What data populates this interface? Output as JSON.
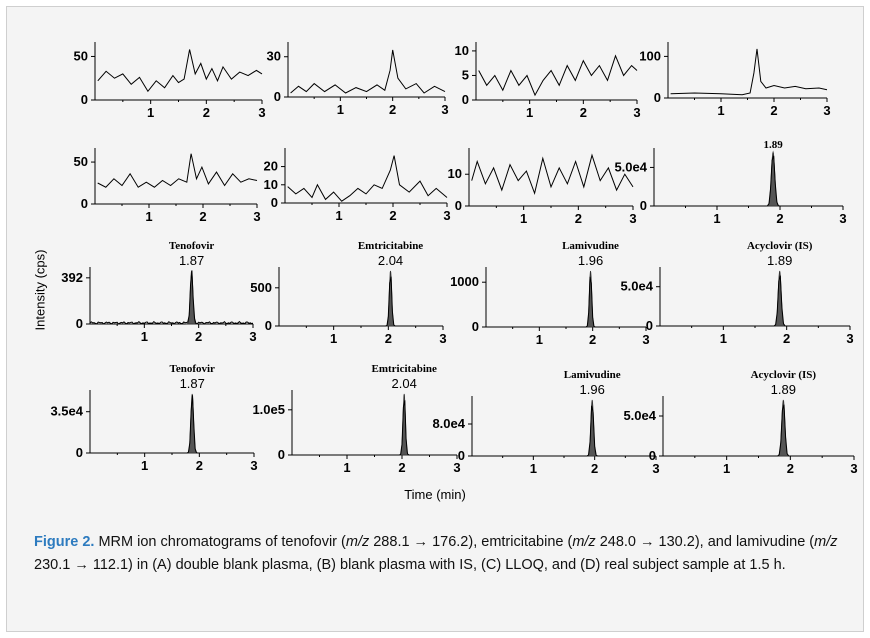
{
  "figure": {
    "y_axis_label": "Intensity (cps)",
    "x_axis_label": "Time (min)",
    "caption": {
      "label": "Figure 2.",
      "segments": [
        {
          "t": " MRM ion chromatograms of tenofovir (",
          "i": false
        },
        {
          "t": "m/z",
          "i": true
        },
        {
          "t": " 288.1 → 176.2), emtricitabine (",
          "i": false
        },
        {
          "t": "m/z",
          "i": true
        },
        {
          "t": " 248.0 → 130.2), and lamivudine (",
          "i": false
        },
        {
          "t": "m/z",
          "i": true
        },
        {
          "t": " 230.1 → 112.1) in (A) double blank plasma, (B) blank plasma with IS, (C) LLOQ, and (D) real subject sample at 1.5 h.",
          "i": false
        }
      ]
    }
  },
  "chart_data": [
    {
      "type": "line",
      "panel": "A-1",
      "x_ticks": [
        "1",
        "2",
        "3"
      ],
      "xlim": [
        0,
        3
      ],
      "y_ticks": [
        "0",
        "50"
      ],
      "ylim": [
        0,
        62
      ],
      "series": [
        {
          "points": [
            [
              0.05,
              22
            ],
            [
              0.2,
              33
            ],
            [
              0.35,
              25
            ],
            [
              0.5,
              30
            ],
            [
              0.65,
              18
            ],
            [
              0.8,
              26
            ],
            [
              0.95,
              10
            ],
            [
              1.1,
              22
            ],
            [
              1.25,
              14
            ],
            [
              1.4,
              28
            ],
            [
              1.5,
              20
            ],
            [
              1.6,
              24
            ],
            [
              1.7,
              58
            ],
            [
              1.8,
              30
            ],
            [
              1.9,
              42
            ],
            [
              2.0,
              24
            ],
            [
              2.1,
              36
            ],
            [
              2.2,
              22
            ],
            [
              2.3,
              38
            ],
            [
              2.45,
              24
            ],
            [
              2.6,
              32
            ],
            [
              2.75,
              28
            ],
            [
              2.9,
              34
            ],
            [
              3.0,
              30
            ]
          ]
        }
      ]
    },
    {
      "type": "line",
      "panel": "A-2",
      "x_ticks": [
        "1",
        "2",
        "3"
      ],
      "xlim": [
        0,
        3
      ],
      "y_ticks": [
        "0",
        "30"
      ],
      "ylim": [
        0,
        38
      ],
      "series": [
        {
          "points": [
            [
              0.05,
              3
            ],
            [
              0.2,
              8
            ],
            [
              0.35,
              4
            ],
            [
              0.5,
              10
            ],
            [
              0.7,
              4
            ],
            [
              0.9,
              9
            ],
            [
              1.1,
              3
            ],
            [
              1.3,
              7
            ],
            [
              1.5,
              4
            ],
            [
              1.7,
              9
            ],
            [
              1.85,
              5
            ],
            [
              1.95,
              20
            ],
            [
              2.0,
              35
            ],
            [
              2.1,
              14
            ],
            [
              2.25,
              6
            ],
            [
              2.45,
              10
            ],
            [
              2.6,
              3
            ],
            [
              2.8,
              8
            ],
            [
              3.0,
              4
            ]
          ]
        }
      ]
    },
    {
      "type": "line",
      "panel": "A-3",
      "x_ticks": [
        "1",
        "2",
        "3"
      ],
      "xlim": [
        0,
        3
      ],
      "y_ticks": [
        "0",
        "5",
        "10"
      ],
      "ylim": [
        0,
        11
      ],
      "series": [
        {
          "points": [
            [
              0.05,
              6
            ],
            [
              0.2,
              3
            ],
            [
              0.35,
              5
            ],
            [
              0.5,
              2
            ],
            [
              0.65,
              6
            ],
            [
              0.8,
              3
            ],
            [
              0.95,
              5
            ],
            [
              1.1,
              1
            ],
            [
              1.25,
              4
            ],
            [
              1.4,
              6
            ],
            [
              1.55,
              3
            ],
            [
              1.7,
              7
            ],
            [
              1.85,
              4
            ],
            [
              2.0,
              8
            ],
            [
              2.15,
              5
            ],
            [
              2.3,
              7
            ],
            [
              2.45,
              4
            ],
            [
              2.6,
              9
            ],
            [
              2.75,
              5
            ],
            [
              2.9,
              7
            ],
            [
              3.0,
              6
            ]
          ]
        }
      ]
    },
    {
      "type": "line",
      "panel": "A-4",
      "x_ticks": [
        "1",
        "2",
        "3"
      ],
      "xlim": [
        0,
        3
      ],
      "y_ticks": [
        "0",
        "100"
      ],
      "ylim": [
        0,
        125
      ],
      "series": [
        {
          "points": [
            [
              0.05,
              10
            ],
            [
              0.5,
              12
            ],
            [
              1.0,
              10
            ],
            [
              1.4,
              8
            ],
            [
              1.55,
              12
            ],
            [
              1.62,
              60
            ],
            [
              1.68,
              118
            ],
            [
              1.75,
              40
            ],
            [
              1.85,
              24
            ],
            [
              2.0,
              30
            ],
            [
              2.2,
              24
            ],
            [
              2.4,
              28
            ],
            [
              2.6,
              22
            ],
            [
              2.85,
              24
            ],
            [
              3.0,
              20
            ]
          ]
        }
      ]
    },
    {
      "type": "line",
      "panel": "B-1",
      "x_ticks": [
        "1",
        "2",
        "3"
      ],
      "xlim": [
        0,
        3
      ],
      "y_ticks": [
        "0",
        "50"
      ],
      "ylim": [
        0,
        62
      ],
      "series": [
        {
          "points": [
            [
              0.05,
              25
            ],
            [
              0.2,
              20
            ],
            [
              0.35,
              30
            ],
            [
              0.5,
              22
            ],
            [
              0.65,
              36
            ],
            [
              0.8,
              20
            ],
            [
              0.95,
              26
            ],
            [
              1.1,
              20
            ],
            [
              1.25,
              28
            ],
            [
              1.4,
              22
            ],
            [
              1.55,
              30
            ],
            [
              1.7,
              26
            ],
            [
              1.78,
              60
            ],
            [
              1.88,
              30
            ],
            [
              1.98,
              44
            ],
            [
              2.1,
              24
            ],
            [
              2.25,
              38
            ],
            [
              2.4,
              22
            ],
            [
              2.55,
              36
            ],
            [
              2.7,
              26
            ],
            [
              2.85,
              30
            ],
            [
              3.0,
              28
            ]
          ]
        }
      ]
    },
    {
      "type": "line",
      "panel": "B-2",
      "x_ticks": [
        "1",
        "2",
        "3"
      ],
      "xlim": [
        0,
        3
      ],
      "y_ticks": [
        "0",
        "10",
        "20"
      ],
      "ylim": [
        0,
        28
      ],
      "series": [
        {
          "points": [
            [
              0.05,
              9
            ],
            [
              0.2,
              5
            ],
            [
              0.35,
              8
            ],
            [
              0.5,
              3
            ],
            [
              0.6,
              10
            ],
            [
              0.75,
              2
            ],
            [
              0.9,
              6
            ],
            [
              1.05,
              1
            ],
            [
              1.2,
              4
            ],
            [
              1.35,
              8
            ],
            [
              1.5,
              5
            ],
            [
              1.65,
              10
            ],
            [
              1.8,
              8
            ],
            [
              1.95,
              18
            ],
            [
              2.02,
              26
            ],
            [
              2.12,
              10
            ],
            [
              2.3,
              6
            ],
            [
              2.5,
              12
            ],
            [
              2.65,
              4
            ],
            [
              2.8,
              8
            ],
            [
              3.0,
              3
            ]
          ]
        }
      ]
    },
    {
      "type": "line",
      "panel": "B-3",
      "x_ticks": [
        "1",
        "2",
        "3"
      ],
      "xlim": [
        0,
        3
      ],
      "y_ticks": [
        "0",
        "10"
      ],
      "ylim": [
        0,
        17
      ],
      "series": [
        {
          "points": [
            [
              0.05,
              8
            ],
            [
              0.15,
              14
            ],
            [
              0.3,
              7
            ],
            [
              0.45,
              12
            ],
            [
              0.6,
              5
            ],
            [
              0.75,
              13
            ],
            [
              0.9,
              8
            ],
            [
              1.05,
              11
            ],
            [
              1.2,
              4
            ],
            [
              1.35,
              15
            ],
            [
              1.5,
              6
            ],
            [
              1.65,
              12
            ],
            [
              1.8,
              7
            ],
            [
              1.95,
              14
            ],
            [
              2.1,
              6
            ],
            [
              2.25,
              16
            ],
            [
              2.4,
              8
            ],
            [
              2.55,
              12
            ],
            [
              2.7,
              5
            ],
            [
              2.85,
              10
            ],
            [
              3.0,
              6
            ]
          ]
        }
      ]
    },
    {
      "type": "area",
      "panel": "B-4",
      "x_ticks": [
        "1",
        "2",
        "3"
      ],
      "xlim": [
        0,
        3
      ],
      "y_ticks": [
        "0",
        "5.0e4"
      ],
      "ylim": [
        0,
        70000
      ],
      "peak_label": "1.89",
      "series": [
        {
          "peak_rt": 1.89,
          "peak_height": 70000,
          "width": 0.055
        }
      ]
    },
    {
      "type": "area",
      "panel": "C-1",
      "x_ticks": [
        "1",
        "2",
        "3"
      ],
      "xlim": [
        0,
        3
      ],
      "y_ticks": [
        "0",
        "392"
      ],
      "ylim": [
        0,
        450
      ],
      "compound": "Tenofovir",
      "peak_label": "1.87",
      "series": [
        {
          "peak_rt": 1.87,
          "peak_height": 450,
          "width": 0.05,
          "baseline_noise": 20
        }
      ]
    },
    {
      "type": "area",
      "panel": "C-2",
      "x_ticks": [
        "1",
        "2",
        "3"
      ],
      "xlim": [
        0,
        3
      ],
      "y_ticks": [
        "0",
        "500"
      ],
      "ylim": [
        0,
        720
      ],
      "compound": "Emtricitabine",
      "peak_label": "2.04",
      "series": [
        {
          "peak_rt": 2.04,
          "peak_height": 720,
          "width": 0.045
        }
      ]
    },
    {
      "type": "area",
      "panel": "C-3",
      "x_ticks": [
        "1",
        "2",
        "3"
      ],
      "xlim": [
        0,
        3
      ],
      "y_ticks": [
        "0",
        "1000"
      ],
      "ylim": [
        0,
        1250
      ],
      "compound": "Lamivudine",
      "peak_label": "1.96",
      "series": [
        {
          "peak_rt": 1.96,
          "peak_height": 1250,
          "width": 0.045
        }
      ]
    },
    {
      "type": "area",
      "panel": "C-4",
      "x_ticks": [
        "1",
        "2",
        "3"
      ],
      "xlim": [
        0,
        3
      ],
      "y_ticks": [
        "0",
        "5.0e4"
      ],
      "ylim": [
        0,
        70000
      ],
      "compound": "Acyclovir (IS)",
      "peak_label": "1.89",
      "series": [
        {
          "peak_rt": 1.89,
          "peak_height": 70000,
          "width": 0.05
        }
      ]
    },
    {
      "type": "area",
      "panel": "D-1",
      "x_ticks": [
        "1",
        "2",
        "3"
      ],
      "xlim": [
        0,
        3
      ],
      "y_ticks": [
        "0",
        "3.5e4"
      ],
      "ylim": [
        0,
        50000
      ],
      "compound": "Tenofovir",
      "peak_label": "1.87",
      "series": [
        {
          "peak_rt": 1.87,
          "peak_height": 50000,
          "width": 0.05
        }
      ]
    },
    {
      "type": "area",
      "panel": "D-2",
      "x_ticks": [
        "1",
        "2",
        "3"
      ],
      "xlim": [
        0,
        3
      ],
      "y_ticks": [
        "0",
        "1.0e5"
      ],
      "ylim": [
        0,
        135000
      ],
      "compound": "Emtricitabine",
      "peak_label": "2.04",
      "series": [
        {
          "peak_rt": 2.04,
          "peak_height": 135000,
          "width": 0.045
        }
      ]
    },
    {
      "type": "area",
      "panel": "D-3",
      "x_ticks": [
        "1",
        "2",
        "3"
      ],
      "xlim": [
        0,
        3
      ],
      "y_ticks": [
        "0",
        "8.0e4"
      ],
      "ylim": [
        0,
        140000
      ],
      "compound": "Lamivudine",
      "peak_label": "1.96",
      "series": [
        {
          "peak_rt": 1.96,
          "peak_height": 140000,
          "width": 0.045
        }
      ]
    },
    {
      "type": "area",
      "panel": "D-4",
      "x_ticks": [
        "1",
        "2",
        "3"
      ],
      "xlim": [
        0,
        3
      ],
      "y_ticks": [
        "0",
        "5.0e4"
      ],
      "ylim": [
        0,
        70000
      ],
      "compound": "Acyclovir (IS)",
      "peak_label": "1.89",
      "series": [
        {
          "peak_rt": 1.89,
          "peak_height": 70000,
          "width": 0.05
        }
      ]
    }
  ]
}
